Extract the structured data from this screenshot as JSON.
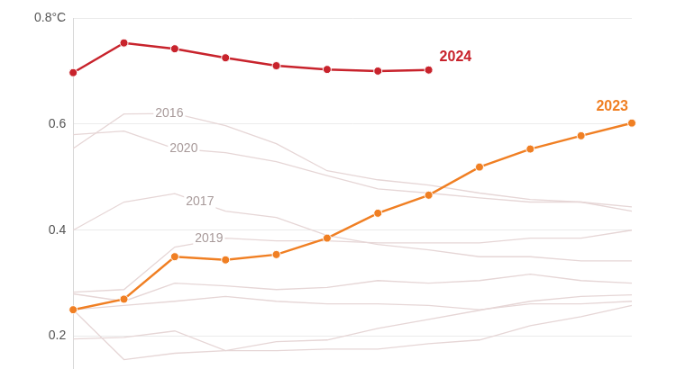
{
  "chart_data": {
    "type": "line",
    "categories": [
      null,
      null,
      null,
      null,
      null,
      null,
      null,
      null,
      null,
      null,
      null,
      null
    ],
    "ylim": [
      0.14,
      0.8
    ],
    "yticks": [
      0.2,
      0.4,
      0.6,
      {
        "value": 0.8,
        "label": "0.8°C"
      }
    ],
    "grid": true,
    "tick_labels": "y",
    "series": [
      {
        "name": "2016",
        "color": "#e6d6d6",
        "values": [
          0.554,
          0.619,
          0.62,
          0.597,
          0.563,
          0.512,
          0.495,
          0.485,
          0.47,
          0.458,
          0.453,
          0.436
        ]
      },
      {
        "name": "2020",
        "color": "#e6d6d6",
        "values": [
          0.58,
          0.587,
          0.554,
          0.546,
          0.529,
          0.503,
          0.478,
          0.47,
          0.461,
          0.453,
          0.453,
          0.444
        ]
      },
      {
        "name": "2017",
        "color": "#e6d6d6",
        "values": [
          0.4,
          0.453,
          0.469,
          0.436,
          0.424,
          0.39,
          0.373,
          0.363,
          0.35,
          0.35,
          0.342,
          0.342
        ]
      },
      {
        "name": "2019",
        "color": "#e6d6d6",
        "values": [
          0.283,
          0.288,
          0.368,
          0.385,
          0.38,
          0.38,
          0.376,
          0.376,
          0.376,
          0.385,
          0.385,
          0.4
        ]
      },
      {
        "color": "#e6d6d6",
        "values": [
          0.28,
          0.266,
          0.3,
          0.295,
          0.288,
          0.292,
          0.305,
          0.3,
          0.305,
          0.317,
          0.305,
          0.3
        ]
      },
      {
        "color": "#e6d6d6",
        "values": [
          0.25,
          0.258,
          0.266,
          0.275,
          0.266,
          0.261,
          0.261,
          0.258,
          0.25,
          0.261,
          0.261,
          0.266
        ]
      },
      {
        "color": "#e6d6d6",
        "values": [
          0.195,
          0.198,
          0.21,
          0.173,
          0.19,
          0.193,
          0.215,
          0.232,
          0.249,
          0.266,
          0.275,
          0.278
        ]
      },
      {
        "color": "#e6d6d6",
        "values": [
          0.25,
          0.156,
          0.168,
          0.173,
          0.173,
          0.176,
          0.176,
          0.186,
          0.193,
          0.22,
          0.237,
          0.258
        ]
      },
      {
        "name": "2023",
        "color": "#f07f23",
        "marker": "circle",
        "values": [
          0.25,
          0.27,
          0.35,
          0.344,
          0.354,
          0.385,
          0.432,
          0.466,
          0.519,
          0.553,
          0.578,
          0.602
        ]
      },
      {
        "name": "2024",
        "color": "#c8232c",
        "marker": "circle",
        "values": [
          0.697,
          0.753,
          0.742,
          0.725,
          0.71,
          0.703,
          0.7,
          0.702,
          null,
          null,
          null,
          null
        ]
      }
    ]
  }
}
